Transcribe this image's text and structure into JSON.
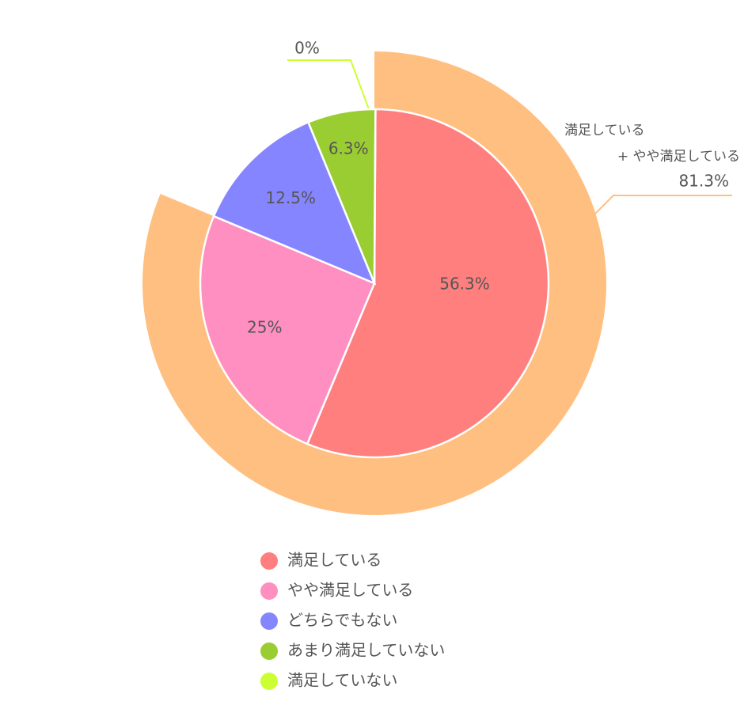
{
  "chart_data": {
    "type": "pie",
    "categories": [
      "満足している",
      "やや満足している",
      "どちらでもない",
      "あまり満足していない",
      "満足していない"
    ],
    "values": [
      56.3,
      25,
      12.5,
      6.3,
      0
    ],
    "value_labels": [
      "56.3%",
      "25%",
      "12.5%",
      "6.3%",
      "0%"
    ],
    "colors": [
      "#ff7f7f",
      "#ff8fc0",
      "#8585ff",
      "#9acd32",
      "#ccff33"
    ],
    "outer_ring": {
      "label_lines": [
        "満足している",
        "+ やや満足している"
      ],
      "value": 81.3,
      "value_label": "81.3%",
      "color": "#ffbf80"
    },
    "legend": "bottom"
  }
}
